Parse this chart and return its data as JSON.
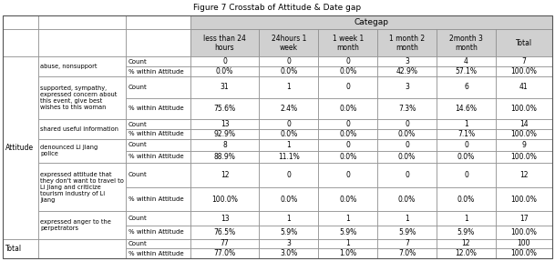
{
  "figure_title": "Figure 7 Crosstab of Attitude & Date gap",
  "categap_label": "Categap",
  "col_headers": [
    "less than 24\nhours",
    "24hours 1\nweek",
    "1 week 1\nmonth",
    "1 month 2\nmonth",
    "2month 3\nmonth",
    "Total"
  ],
  "row_groups": [
    {
      "group": "Attitude",
      "subgroup": "abuse, nonsupport",
      "count": [
        "0",
        "0",
        "0",
        "3",
        "4",
        "7"
      ],
      "pct": [
        "0.0%",
        "0.0%",
        "0.0%",
        "42.9%",
        "57.1%",
        "100.0%"
      ]
    },
    {
      "group": "",
      "subgroup": "supported, sympathy,\nexpressed concern about\nthis event, give best\nwishes to this woman",
      "count": [
        "31",
        "1",
        "0",
        "3",
        "6",
        "41"
      ],
      "pct": [
        "75.6%",
        "2.4%",
        "0.0%",
        "7.3%",
        "14.6%",
        "100.0%"
      ]
    },
    {
      "group": "",
      "subgroup": "shared useful information",
      "count": [
        "13",
        "0",
        "0",
        "0",
        "1",
        "14"
      ],
      "pct": [
        "92.9%",
        "0.0%",
        "0.0%",
        "0.0%",
        "7.1%",
        "100.0%"
      ]
    },
    {
      "group": "",
      "subgroup": "denounced Li Jiang\npolice",
      "count": [
        "8",
        "1",
        "0",
        "0",
        "0",
        "9"
      ],
      "pct": [
        "88.9%",
        "11.1%",
        "0.0%",
        "0.0%",
        "0.0%",
        "100.0%"
      ]
    },
    {
      "group": "",
      "subgroup": "expressed attitude that\nthey don't want to travel to\nLi Jiang and criticize\ntourism industry of Li\nJiang",
      "count": [
        "12",
        "0",
        "0",
        "0",
        "0",
        "12"
      ],
      "pct": [
        "100.0%",
        "0.0%",
        "0.0%",
        "0.0%",
        "0.0%",
        "100.0%"
      ]
    },
    {
      "group": "",
      "subgroup": "expressed anger to the\nperpetrators",
      "count": [
        "13",
        "1",
        "1",
        "1",
        "1",
        "17"
      ],
      "pct": [
        "76.5%",
        "5.9%",
        "5.9%",
        "5.9%",
        "5.9%",
        "100.0%"
      ]
    }
  ],
  "total_count": [
    "77",
    "3",
    "1",
    "7",
    "12",
    "100"
  ],
  "total_pct": [
    "77.0%",
    "3.0%",
    "1.0%",
    "7.0%",
    "12.0%",
    "100.0%"
  ],
  "header_bg": "#d0d0d0",
  "cell_bg": "#ffffff",
  "edge_color": "#888888",
  "font_size_header": 5.5,
  "font_size_data": 5.5,
  "font_size_measure": 5.0,
  "font_size_subgroup": 4.8,
  "font_size_group": 5.5,
  "font_size_title": 6.5,
  "font_size_categap": 6.5
}
